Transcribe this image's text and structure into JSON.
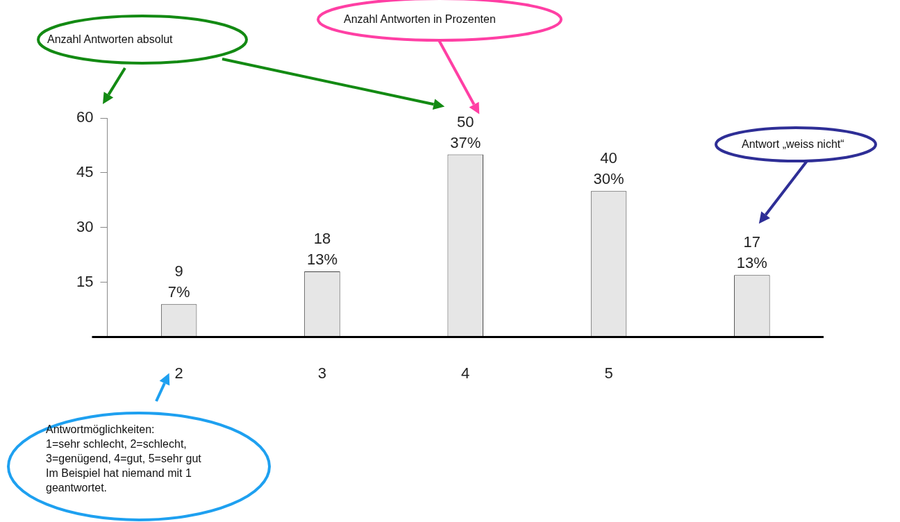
{
  "chart_data": {
    "type": "bar",
    "categories": [
      "2",
      "3",
      "4",
      "5",
      null
    ],
    "values": [
      9,
      18,
      50,
      40,
      17
    ],
    "value_labels": [
      "9\n7%",
      "18\n13%",
      "50\n37%",
      "40\n30%",
      "17\n13%"
    ],
    "color": "#e6e6e6",
    "ylim": [
      0,
      60
    ],
    "yticks": [
      15,
      30,
      45,
      60
    ],
    "grid": false,
    "legend": false,
    "annotations": [
      "Anzahl Antworten absolut",
      "Anzahl Antworten in Prozenten",
      "Antwort „weiss nicht“",
      "Antwortmöglichkeiten:\n1=sehr schlecht, 2=schlecht,\n3=genügend, 4=gut, 5=sehr gut\nIm Beispiel hat niemand mit 1\ngeantwortet."
    ]
  }
}
